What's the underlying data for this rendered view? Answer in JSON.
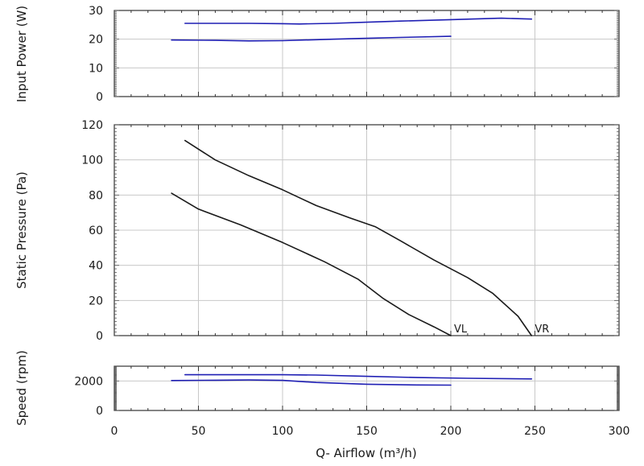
{
  "chart_data": {
    "type": "line",
    "shared_x": {
      "label": "Q- Airflow (m³/h)",
      "xlim": [
        0,
        300
      ],
      "ticks": [
        0,
        50,
        100,
        150,
        200,
        250,
        300
      ]
    },
    "panels": [
      {
        "id": "power",
        "ylabel": "Input Power (W)",
        "ylim": [
          0,
          30
        ],
        "yticks": [
          0,
          10,
          20,
          30
        ],
        "series_color": "#1f1fb4",
        "series": [
          {
            "x": [
              34,
              60,
              80,
              100,
              130,
              150,
              170,
              200
            ],
            "y": [
              19.7,
              19.6,
              19.4,
              19.5,
              20.0,
              20.3,
              20.6,
              21.0
            ]
          },
          {
            "x": [
              42,
              60,
              80,
              100,
              110,
              130,
              150,
              170,
              200,
              230,
              248
            ],
            "y": [
              25.5,
              25.5,
              25.5,
              25.4,
              25.3,
              25.5,
              25.9,
              26.3,
              26.8,
              27.3,
              27.0
            ]
          }
        ]
      },
      {
        "id": "pressure",
        "ylabel": "Static Pressure (Pa)",
        "ylim": [
          0,
          120
        ],
        "yticks": [
          0,
          20,
          40,
          60,
          80,
          100,
          120
        ],
        "series_color": "#1a1a1a",
        "series": [
          {
            "x": [
              34,
              50,
              75,
              100,
              125,
              145,
              160,
              175,
              190,
              200
            ],
            "y": [
              81,
              72,
              63,
              53,
              42,
              32,
              21,
              12,
              5,
              0
            ],
            "label": "VL"
          },
          {
            "x": [
              42,
              60,
              80,
              100,
              120,
              140,
              155,
              170,
              190,
              210,
              225,
              240,
              248
            ],
            "y": [
              111,
              100,
              91,
              83,
              74,
              67,
              62,
              54,
              43,
              33,
              24,
              11,
              0
            ],
            "label": "VR"
          }
        ]
      },
      {
        "id": "speed",
        "ylabel": "Speed (rpm)",
        "ylim": [
          0,
          3000
        ],
        "yticks": [
          0,
          2000
        ],
        "series_color": "#1f1fb4",
        "series": [
          {
            "x": [
              34,
              60,
              80,
              100,
              120,
              150,
              180,
              200
            ],
            "y": [
              2030,
              2050,
              2070,
              2040,
              1900,
              1780,
              1730,
              1720
            ]
          },
          {
            "x": [
              42,
              70,
              100,
              120,
              150,
              180,
              210,
              248
            ],
            "y": [
              2420,
              2420,
              2420,
              2400,
              2310,
              2230,
              2180,
              2140
            ]
          }
        ]
      }
    ],
    "grid": true
  }
}
